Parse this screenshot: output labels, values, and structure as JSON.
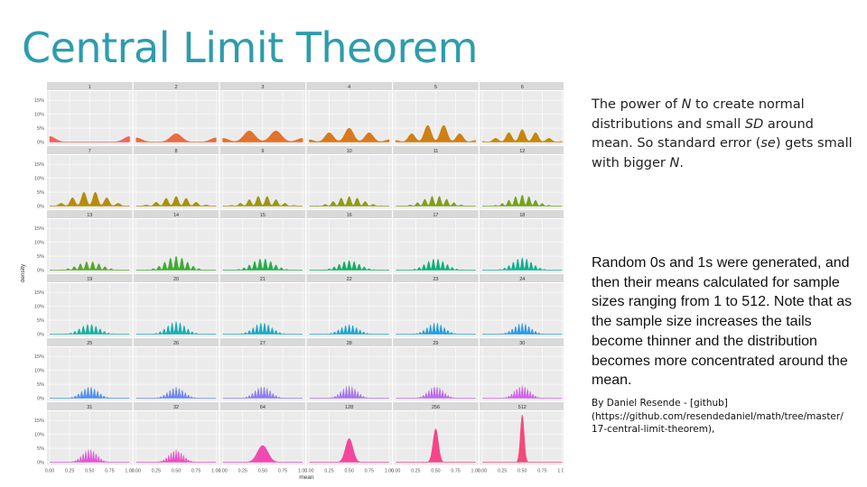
{
  "slide": {
    "title": "Central Limit Theorem",
    "description": {
      "p1": "The power of ",
      "n1": "N",
      "p2": " to create normal distributions and small ",
      "sd": "SD",
      "p3": " around mean. So standard error (",
      "se": "se",
      "p4": ") gets small with bigger ",
      "n2": "N",
      "p5": "."
    },
    "method": "Random 0s and 1s were generated, and then their means calculated for sample sizes ranging from 1 to 512. Note that as the sample size increases the tails become thinner and the distribution becomes more concentrated around the mean.",
    "credit": {
      "line1": "By Daniel Resende - [github]",
      "line2": "(https://github.com/resendedaniel/math/tree/master/",
      "line3": "17-central-limit-theorem),"
    }
  },
  "chart_data": {
    "type": "area",
    "title": "",
    "xlabel": "mean",
    "ylabel": "density",
    "xlim": [
      0,
      1
    ],
    "ylim": [
      0,
      0.17
    ],
    "x_ticks": [
      "0.00",
      "0.25",
      "0.50",
      "0.75",
      "1.00"
    ],
    "y_ticks": [
      "0%",
      "5%",
      "10%",
      "15%"
    ],
    "grid": true,
    "layout": "facet-grid 6x6",
    "panels": [
      {
        "n": 1,
        "label": "1",
        "peak": 0.02,
        "color": "#f0625a"
      },
      {
        "n": 2,
        "label": "2",
        "peak": 0.03,
        "color": "#ea6b3e"
      },
      {
        "n": 3,
        "label": "3",
        "peak": 0.04,
        "color": "#e2712e"
      },
      {
        "n": 4,
        "label": "4",
        "peak": 0.05,
        "color": "#d9781c"
      },
      {
        "n": 5,
        "label": "5",
        "peak": 0.06,
        "color": "#cf7f14"
      },
      {
        "n": 6,
        "label": "6",
        "peak": 0.045,
        "color": "#c5860c"
      },
      {
        "n": 7,
        "label": "7",
        "peak": 0.05,
        "color": "#b68c0c"
      },
      {
        "n": 8,
        "label": "8",
        "peak": 0.035,
        "color": "#a8920e"
      },
      {
        "n": 9,
        "label": "9",
        "peak": 0.035,
        "color": "#9c9612"
      },
      {
        "n": 10,
        "label": "10",
        "peak": 0.035,
        "color": "#8f9a15"
      },
      {
        "n": 11,
        "label": "11",
        "peak": 0.035,
        "color": "#829e18"
      },
      {
        "n": 12,
        "label": "12",
        "peak": 0.04,
        "color": "#74a21c"
      },
      {
        "n": 13,
        "label": "13",
        "peak": 0.03,
        "color": "#55a829"
      },
      {
        "n": 14,
        "label": "14",
        "peak": 0.05,
        "color": "#3eab33"
      },
      {
        "n": 15,
        "label": "15",
        "peak": 0.04,
        "color": "#22ad48"
      },
      {
        "n": 16,
        "label": "16",
        "peak": 0.035,
        "color": "#12ae63"
      },
      {
        "n": 17,
        "label": "17",
        "peak": 0.04,
        "color": "#0eaf7b"
      },
      {
        "n": 18,
        "label": "18",
        "peak": 0.045,
        "color": "#10b091"
      },
      {
        "n": 19,
        "label": "19",
        "peak": 0.035,
        "color": "#16b0a4"
      },
      {
        "n": 20,
        "label": "20",
        "peak": 0.045,
        "color": "#18adb5"
      },
      {
        "n": 21,
        "label": "21",
        "peak": 0.04,
        "color": "#1aa9c4"
      },
      {
        "n": 22,
        "label": "22",
        "peak": 0.035,
        "color": "#1da5d1"
      },
      {
        "n": 23,
        "label": "23",
        "peak": 0.04,
        "color": "#22a0dc"
      },
      {
        "n": 24,
        "label": "24",
        "peak": 0.04,
        "color": "#2a9ae6"
      },
      {
        "n": 25,
        "label": "25",
        "peak": 0.04,
        "color": "#4a90ee"
      },
      {
        "n": 26,
        "label": "26",
        "peak": 0.04,
        "color": "#6a86f2"
      },
      {
        "n": 27,
        "label": "27",
        "peak": 0.04,
        "color": "#8a7cf4"
      },
      {
        "n": 28,
        "label": "28",
        "peak": 0.045,
        "color": "#a672f2"
      },
      {
        "n": 29,
        "label": "29",
        "peak": 0.04,
        "color": "#bd6aee"
      },
      {
        "n": 30,
        "label": "30",
        "peak": 0.045,
        "color": "#d062e6"
      },
      {
        "n": 31,
        "label": "31",
        "peak": 0.045,
        "color": "#e056d8"
      },
      {
        "n": 32,
        "label": "32",
        "peak": 0.045,
        "color": "#ea4fc6"
      },
      {
        "n": 64,
        "label": "64",
        "peak": 0.06,
        "color": "#f04ab2"
      },
      {
        "n": 128,
        "label": "128",
        "peak": 0.085,
        "color": "#f4469e"
      },
      {
        "n": 256,
        "label": "256",
        "peak": 0.12,
        "color": "#f5468a"
      },
      {
        "n": 512,
        "label": "512",
        "peak": 0.17,
        "color": "#f44a78"
      }
    ]
  }
}
